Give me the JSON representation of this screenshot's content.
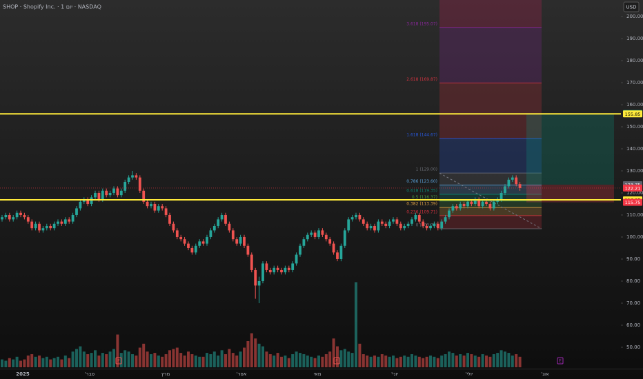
{
  "chart_data": {
    "type": "candlestick",
    "title": "SHOP · Shopify Inc. · 1 יום · NASDAQ",
    "currency": "USD",
    "time_labels": [
      "2025",
      "'פבר",
      "מרץ",
      "'אפר",
      "מאי",
      "'יוני",
      "'יולי",
      "'אוג"
    ],
    "events": [
      "E",
      "E",
      "E"
    ],
    "ylim": [
      40.3,
      207.5
    ],
    "yticks": [
      {
        "value": 200,
        "label": "200.00"
      },
      {
        "value": 190,
        "label": "190.00"
      },
      {
        "value": 180,
        "label": "180.00"
      },
      {
        "value": 170,
        "label": "170.00"
      },
      {
        "value": 160,
        "label": "160.00"
      },
      {
        "value": 150,
        "label": "150.00"
      },
      {
        "value": 140,
        "label": "140.00"
      },
      {
        "value": 130,
        "label": "130.00"
      },
      {
        "value": 120,
        "label": "120.00"
      },
      {
        "value": 110,
        "label": "110.00"
      },
      {
        "value": 100,
        "label": "100.00"
      },
      {
        "value": 90,
        "label": "90.00"
      },
      {
        "value": 80,
        "label": "80.00"
      },
      {
        "value": 70,
        "label": "70.00"
      },
      {
        "value": 60,
        "label": "60.00"
      },
      {
        "value": 50,
        "label": "50.00"
      }
    ],
    "up_color": "#26a69a",
    "down_color": "#ef5350",
    "candles": [
      [
        108,
        110,
        107,
        109
      ],
      [
        109,
        111,
        108,
        110
      ],
      [
        110,
        111,
        107,
        108
      ],
      [
        108,
        110,
        107,
        109
      ],
      [
        109,
        112,
        108,
        111
      ],
      [
        111,
        112,
        109,
        110
      ],
      [
        110,
        111,
        108,
        109
      ],
      [
        109,
        110,
        106,
        107
      ],
      [
        107,
        108,
        103,
        104
      ],
      [
        104,
        107,
        103,
        106
      ],
      [
        106,
        107,
        102,
        103
      ],
      [
        103,
        105,
        102,
        104
      ],
      [
        104,
        106,
        103,
        105
      ],
      [
        105,
        106,
        103,
        104
      ],
      [
        104,
        107,
        103,
        106
      ],
      [
        106,
        108,
        105,
        107
      ],
      [
        107,
        108,
        105,
        106
      ],
      [
        106,
        109,
        105,
        108
      ],
      [
        108,
        109,
        106,
        107
      ],
      [
        107,
        111,
        106,
        110
      ],
      [
        110,
        114,
        109,
        113
      ],
      [
        113,
        117,
        112,
        116
      ],
      [
        116,
        118,
        115,
        117
      ],
      [
        117,
        118,
        114,
        115
      ],
      [
        115,
        119,
        114,
        118
      ],
      [
        118,
        121,
        117,
        120
      ],
      [
        120,
        121,
        116,
        117
      ],
      [
        117,
        122,
        116,
        121
      ],
      [
        121,
        122,
        118,
        119
      ],
      [
        119,
        121,
        118,
        120
      ],
      [
        120,
        123,
        119,
        122
      ],
      [
        122,
        123,
        118,
        119
      ],
      [
        119,
        122,
        118,
        121
      ],
      [
        121,
        126,
        120,
        125
      ],
      [
        125,
        128,
        124,
        127
      ],
      [
        127,
        130,
        126,
        128
      ],
      [
        128,
        129,
        126,
        127
      ],
      [
        127,
        128,
        120,
        121
      ],
      [
        121,
        122,
        115,
        116
      ],
      [
        116,
        117,
        113,
        114
      ],
      [
        114,
        116,
        113,
        115
      ],
      [
        115,
        116,
        111,
        112
      ],
      [
        112,
        115,
        111,
        114
      ],
      [
        114,
        115,
        112,
        113
      ],
      [
        113,
        114,
        109,
        110
      ],
      [
        110,
        111,
        105,
        106
      ],
      [
        106,
        107,
        102,
        103
      ],
      [
        103,
        104,
        99,
        100
      ],
      [
        100,
        101,
        98,
        99
      ],
      [
        99,
        100,
        96,
        97
      ],
      [
        97,
        98,
        94,
        95
      ],
      [
        95,
        96,
        92,
        93
      ],
      [
        93,
        97,
        92,
        96
      ],
      [
        96,
        99,
        95,
        98
      ],
      [
        98,
        99,
        96,
        97
      ],
      [
        97,
        101,
        96,
        100
      ],
      [
        100,
        104,
        99,
        103
      ],
      [
        103,
        106,
        102,
        105
      ],
      [
        105,
        109,
        104,
        108
      ],
      [
        108,
        111,
        107,
        110
      ],
      [
        110,
        111,
        105,
        106
      ],
      [
        106,
        107,
        102,
        103
      ],
      [
        103,
        104,
        98,
        99
      ],
      [
        99,
        100,
        96,
        97
      ],
      [
        97,
        101,
        96,
        100
      ],
      [
        100,
        101,
        95,
        96
      ],
      [
        96,
        97,
        91,
        92
      ],
      [
        92,
        93,
        84,
        85
      ],
      [
        85,
        86,
        72,
        78
      ],
      [
        78,
        82,
        70,
        80
      ],
      [
        80,
        89,
        79,
        88
      ],
      [
        88,
        89,
        84,
        85
      ],
      [
        85,
        86,
        83,
        84
      ],
      [
        84,
        87,
        83,
        86
      ],
      [
        86,
        87,
        84,
        85
      ],
      [
        85,
        86,
        83,
        84
      ],
      [
        84,
        87,
        83,
        86
      ],
      [
        86,
        87,
        84,
        85
      ],
      [
        85,
        89,
        84,
        88
      ],
      [
        88,
        93,
        87,
        92
      ],
      [
        92,
        97,
        91,
        96
      ],
      [
        96,
        100,
        95,
        99
      ],
      [
        99,
        102,
        98,
        101
      ],
      [
        101,
        103,
        100,
        102
      ],
      [
        102,
        103,
        99,
        100
      ],
      [
        100,
        104,
        99,
        103
      ],
      [
        103,
        104,
        100,
        101
      ],
      [
        101,
        102,
        98,
        99
      ],
      [
        99,
        100,
        96,
        97
      ],
      [
        97,
        98,
        92,
        93
      ],
      [
        93,
        94,
        89,
        90
      ],
      [
        90,
        97,
        89,
        96
      ],
      [
        96,
        104,
        95,
        103
      ],
      [
        103,
        109,
        102,
        108
      ],
      [
        108,
        110,
        107,
        109
      ],
      [
        109,
        111,
        108,
        110
      ],
      [
        110,
        111,
        107,
        108
      ],
      [
        108,
        109,
        105,
        106
      ],
      [
        106,
        107,
        103,
        104
      ],
      [
        104,
        106,
        103,
        105
      ],
      [
        105,
        106,
        102,
        103
      ],
      [
        103,
        108,
        102,
        107
      ],
      [
        107,
        108,
        105,
        106
      ],
      [
        106,
        107,
        104,
        105
      ],
      [
        105,
        108,
        104,
        107
      ],
      [
        107,
        109,
        106,
        108
      ],
      [
        108,
        109,
        105,
        106
      ],
      [
        106,
        107,
        103,
        104
      ],
      [
        104,
        106,
        103,
        105
      ],
      [
        105,
        107,
        104,
        106
      ],
      [
        106,
        109,
        105,
        108
      ],
      [
        108,
        111,
        107,
        110
      ],
      [
        110,
        111,
        106,
        107
      ],
      [
        107,
        108,
        104,
        105
      ],
      [
        105,
        106,
        103,
        104
      ],
      [
        104,
        106,
        103,
        105
      ],
      [
        105,
        107,
        104,
        106
      ],
      [
        106,
        107,
        103,
        104
      ],
      [
        104,
        108,
        103,
        107
      ],
      [
        107,
        110,
        106,
        109
      ],
      [
        109,
        113,
        108,
        112
      ],
      [
        112,
        115,
        111,
        114
      ],
      [
        114,
        115,
        112,
        113
      ],
      [
        113,
        116,
        112,
        115
      ],
      [
        115,
        116,
        113,
        114
      ],
      [
        114,
        117,
        113,
        116
      ],
      [
        116,
        117,
        114,
        115
      ],
      [
        115,
        118,
        114,
        117
      ],
      [
        117,
        118,
        113,
        114
      ],
      [
        114,
        117,
        113,
        116
      ],
      [
        116,
        117,
        114,
        115
      ],
      [
        115,
        116,
        112,
        113
      ],
      [
        113,
        117,
        112,
        116
      ],
      [
        116,
        118,
        115,
        117
      ],
      [
        117,
        121,
        116,
        120
      ],
      [
        120,
        124,
        119,
        123
      ],
      [
        123,
        127,
        122,
        126
      ],
      [
        126,
        128,
        125,
        127
      ],
      [
        127,
        128,
        123,
        124
      ],
      [
        124,
        125,
        121,
        122.21
      ]
    ],
    "volume": [
      6,
      5,
      7,
      6,
      8,
      5,
      6,
      9,
      10,
      8,
      9,
      7,
      8,
      6,
      7,
      8,
      6,
      9,
      7,
      12,
      14,
      16,
      12,
      10,
      11,
      13,
      9,
      11,
      10,
      12,
      14,
      25,
      11,
      13,
      12,
      10,
      9,
      15,
      18,
      12,
      10,
      11,
      9,
      8,
      10,
      13,
      14,
      15,
      11,
      9,
      12,
      10,
      9,
      8,
      8,
      11,
      10,
      12,
      9,
      13,
      10,
      14,
      11,
      9,
      12,
      15,
      20,
      26,
      22,
      18,
      16,
      12,
      10,
      9,
      11,
      8,
      9,
      7,
      10,
      12,
      11,
      10,
      9,
      8,
      7,
      9,
      8,
      10,
      12,
      22,
      16,
      13,
      14,
      12,
      11,
      65,
      18,
      10,
      9,
      8,
      9,
      8,
      10,
      9,
      8,
      9,
      7,
      8,
      9,
      8,
      10,
      9,
      8,
      7,
      8,
      9,
      8,
      7,
      9,
      10,
      12,
      11,
      9,
      10,
      9,
      11,
      10,
      9,
      8,
      10,
      9,
      8,
      10,
      11,
      13,
      12,
      11,
      9,
      10,
      8
    ],
    "fib_levels": [
      {
        "value": 103.75,
        "label": "0 (103.75)",
        "color": "#787b86"
      },
      {
        "value": 109.71,
        "label": "0.236 (109.71)",
        "color": "#f23645"
      },
      {
        "value": 113.39,
        "label": "0.382 (113.39)",
        "color": "#ffb74d"
      },
      {
        "value": 116.37,
        "label": "0.5 (116.37)",
        "color": "#4caf50"
      },
      {
        "value": 119.35,
        "label": "0.618 (119.35)",
        "color": "#089981"
      },
      {
        "value": 123.6,
        "label": "0.786 (123.60)",
        "color": "#64b5f6"
      },
      {
        "value": 129,
        "label": "1 (129.00)",
        "color": "#787b86"
      },
      {
        "value": 144.67,
        "label": "1.618 (144.67)",
        "color": "#2962ff"
      },
      {
        "value": 169.87,
        "label": "2.618 (169.87)",
        "color": "#f23645"
      },
      {
        "value": 195.07,
        "label": "3.618 (195.07)",
        "color": "#9c27b0"
      }
    ],
    "price_labels": [
      {
        "value": 156,
        "label": "156.00",
        "color": "#089981"
      },
      {
        "value": 155.85,
        "label": "155.85",
        "color": "#ffeb3b"
      },
      {
        "value": 123.75,
        "label": "123.75",
        "color": "#5d606b"
      },
      {
        "value": 122.21,
        "label": "122.21",
        "color": "#f23645"
      },
      {
        "value": 116.85,
        "label": "116.85",
        "color": "#ffeb3b"
      },
      {
        "value": 115.75,
        "label": "115.75",
        "color": "#f23645"
      }
    ]
  }
}
